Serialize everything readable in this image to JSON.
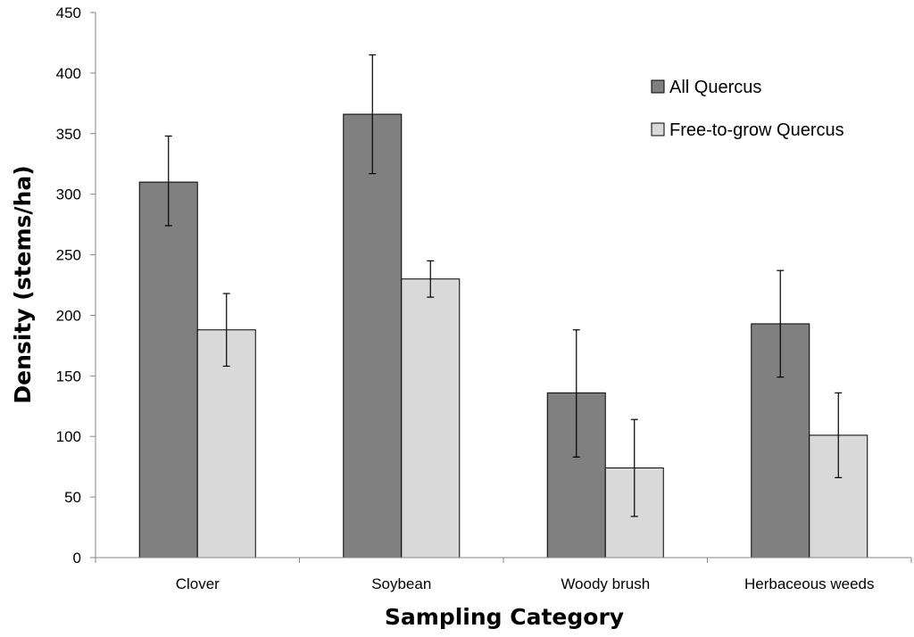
{
  "chart_data": {
    "type": "bar",
    "title": "",
    "xlabel": "Sampling Category",
    "ylabel": "Density (stems/ha)",
    "ylim": [
      0,
      450
    ],
    "yticks": [
      0,
      50,
      100,
      150,
      200,
      250,
      300,
      350,
      400,
      450
    ],
    "grid": false,
    "legend_position": "top-right",
    "categories": [
      "Clover",
      "Soybean",
      "Woody brush",
      "Herbaceous weeds"
    ],
    "series": [
      {
        "name": "All Quercus",
        "color": "#808080",
        "values": [
          310,
          366,
          136,
          193
        ],
        "error_low": [
          274,
          317,
          83,
          149
        ],
        "error_high": [
          348,
          415,
          188,
          237
        ]
      },
      {
        "name": "Free-to-grow Quercus",
        "color": "#d9d9d9",
        "values": [
          188,
          230,
          74,
          101
        ],
        "error_low": [
          158,
          215,
          34,
          66
        ],
        "error_high": [
          218,
          245,
          114,
          136
        ]
      }
    ]
  }
}
